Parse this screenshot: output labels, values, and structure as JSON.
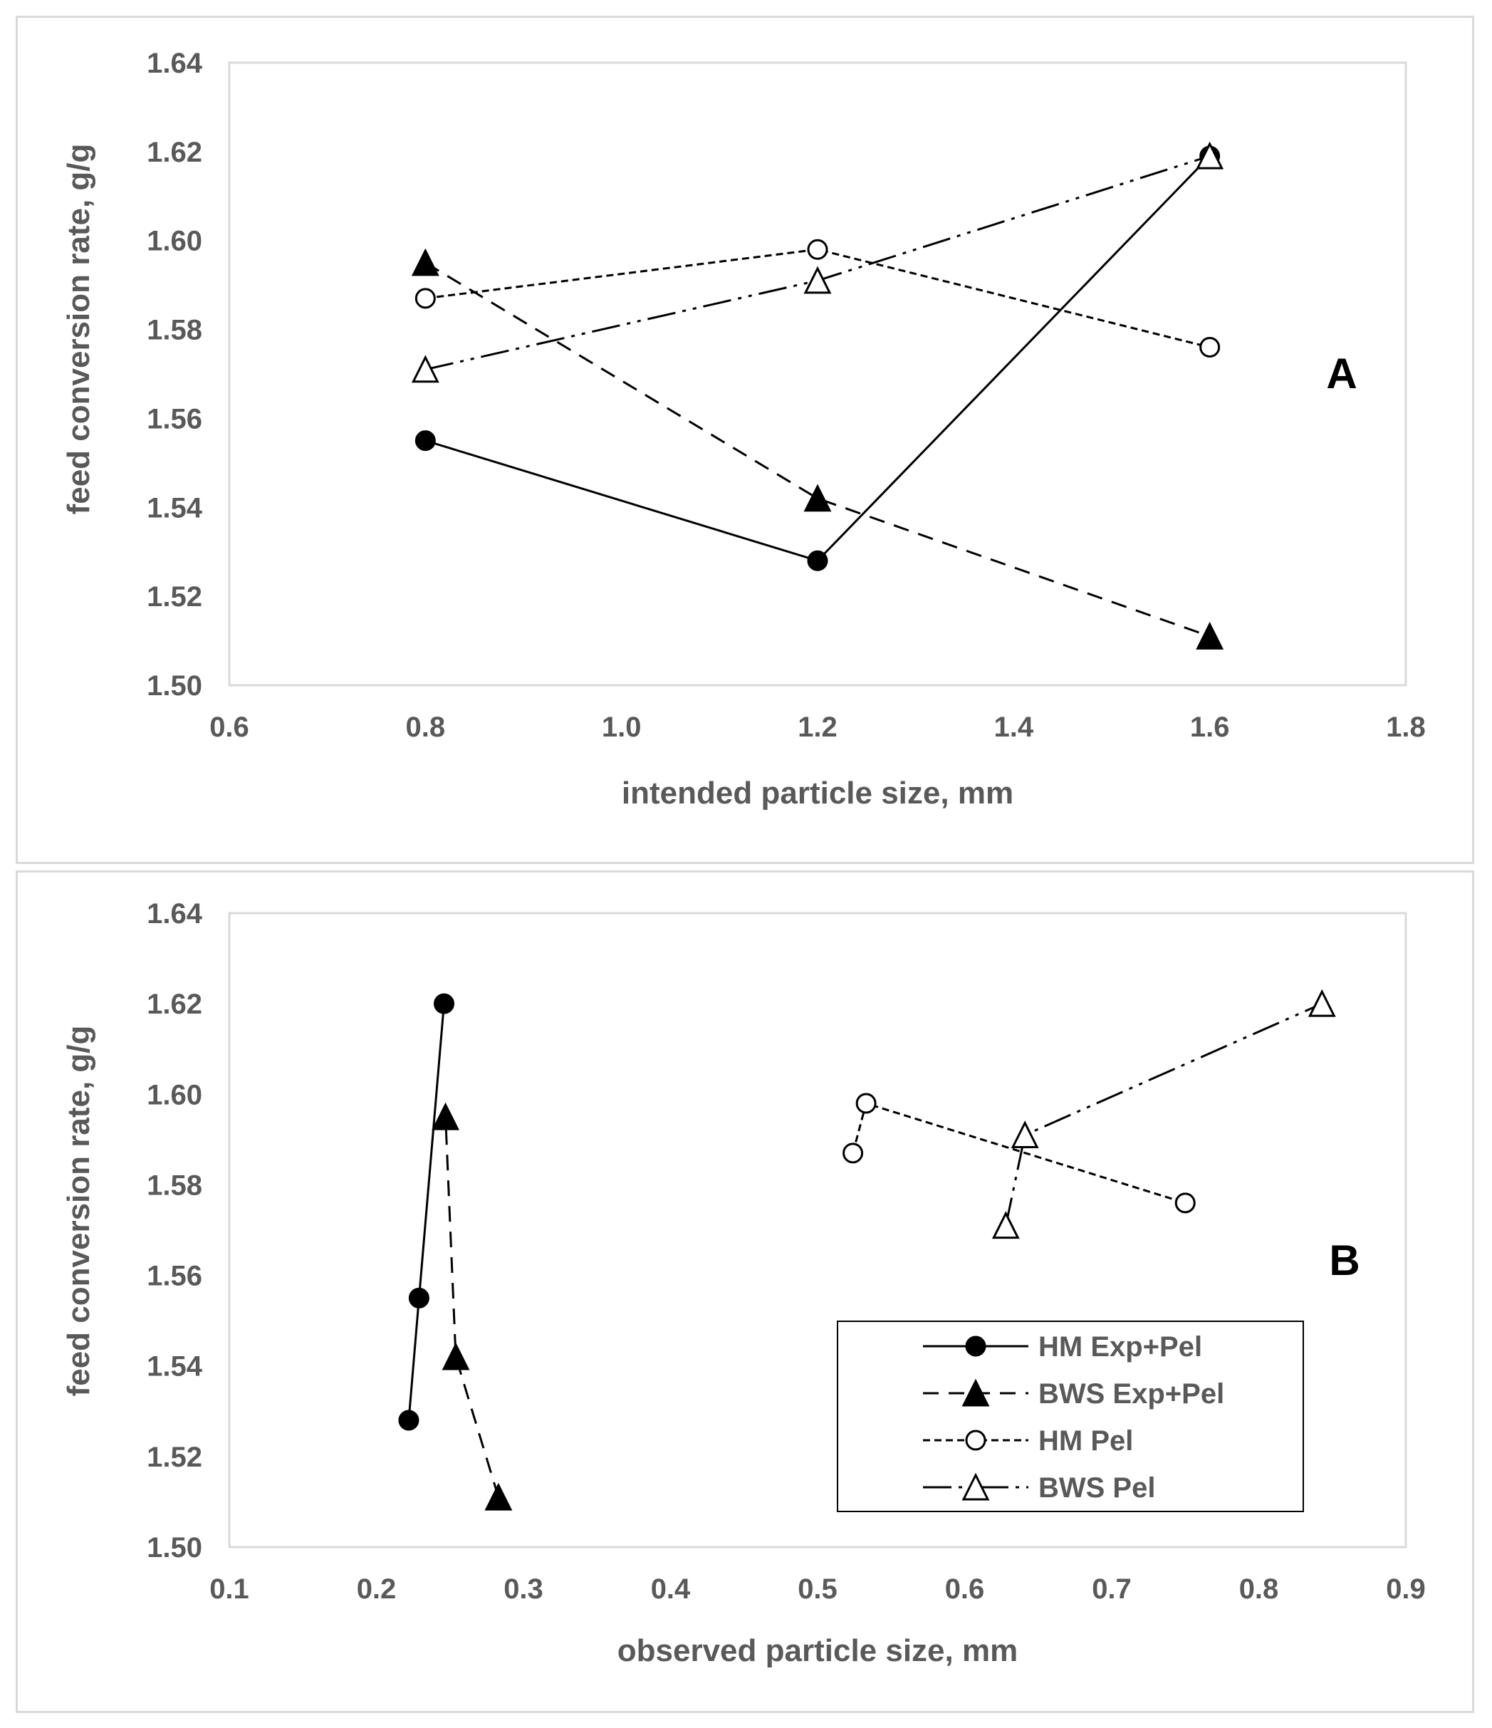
{
  "chart_data": [
    {
      "id": "A",
      "type": "line",
      "panel_label": "A",
      "xlabel": "intended particle size, mm",
      "ylabel": "feed conversion rate, g/g",
      "xlim": [
        0.6,
        1.8
      ],
      "ylim": [
        1.5,
        1.64
      ],
      "xticks": [
        "0.6",
        "0.8",
        "1.0",
        "1.2",
        "1.4",
        "1.6",
        "1.8"
      ],
      "yticks": [
        "1.50",
        "1.52",
        "1.54",
        "1.56",
        "1.58",
        "1.60",
        "1.62",
        "1.64"
      ],
      "series": [
        {
          "name": "HM Exp+Pel",
          "x": [
            0.8,
            1.2,
            1.6
          ],
          "y": [
            1.555,
            1.528,
            1.619
          ]
        },
        {
          "name": "BWS Exp+Pel",
          "x": [
            0.8,
            1.2,
            1.6
          ],
          "y": [
            1.595,
            1.542,
            1.511
          ]
        },
        {
          "name": "HM Pel",
          "x": [
            0.8,
            1.2,
            1.6
          ],
          "y": [
            1.587,
            1.598,
            1.576
          ]
        },
        {
          "name": "BWS Pel",
          "x": [
            0.8,
            1.2,
            1.6
          ],
          "y": [
            1.571,
            1.591,
            1.619
          ]
        }
      ]
    },
    {
      "id": "B",
      "type": "line",
      "panel_label": "B",
      "xlabel": "observed particle size, mm",
      "ylabel": "feed conversion rate, g/g",
      "xlim": [
        0.1,
        0.9
      ],
      "ylim": [
        1.5,
        1.64
      ],
      "xticks": [
        "0.1",
        "0.2",
        "0.3",
        "0.4",
        "0.5",
        "0.6",
        "0.7",
        "0.8",
        "0.9"
      ],
      "yticks": [
        "1.50",
        "1.52",
        "1.54",
        "1.56",
        "1.58",
        "1.60",
        "1.62",
        "1.64"
      ],
      "series": [
        {
          "name": "HM Exp+Pel",
          "x": [
            0.222,
            0.229,
            0.246
          ],
          "y": [
            1.528,
            1.555,
            1.62
          ]
        },
        {
          "name": "BWS Exp+Pel",
          "x": [
            0.283,
            0.254,
            0.247
          ],
          "y": [
            1.511,
            1.542,
            1.595
          ]
        },
        {
          "name": "HM Pel",
          "x": [
            0.524,
            0.533,
            0.75
          ],
          "y": [
            1.587,
            1.598,
            1.576
          ]
        },
        {
          "name": "BWS Pel",
          "x": [
            0.628,
            0.641,
            0.843
          ],
          "y": [
            1.571,
            1.591,
            1.62
          ]
        }
      ],
      "legend": [
        "HM Exp+Pel",
        "BWS Exp+Pel",
        "HM Pel",
        "BWS Pel"
      ],
      "legend_position": "bottom-right"
    }
  ],
  "series_styles": {
    "HM Exp+Pel": {
      "marker": "circle",
      "fill": "#000000",
      "dash": ""
    },
    "BWS Exp+Pel": {
      "marker": "triangle",
      "fill": "#000000",
      "dash": "22,14"
    },
    "HM Pel": {
      "marker": "circle",
      "fill": "#ffffff",
      "dash": "10,6"
    },
    "BWS Pel": {
      "marker": "triangle",
      "fill": "#ffffff",
      "dash": "40,10,5,10,5,10"
    }
  }
}
